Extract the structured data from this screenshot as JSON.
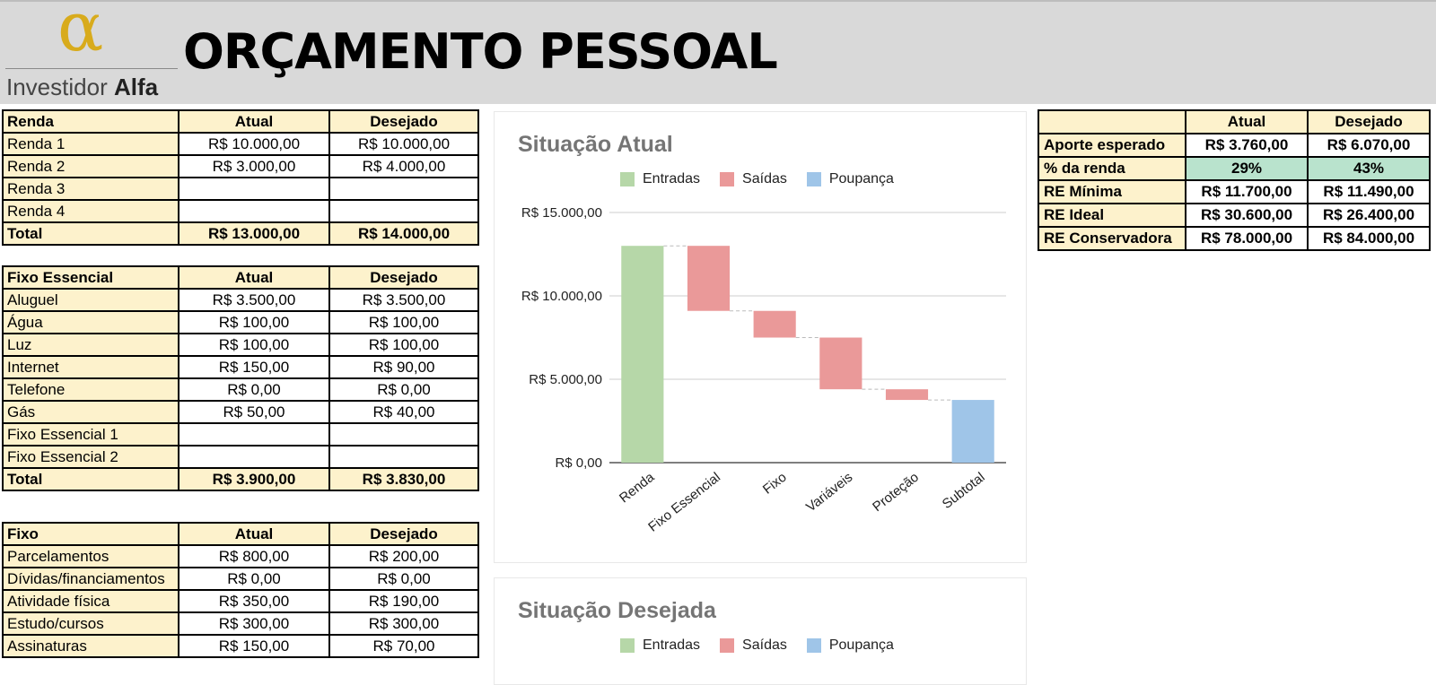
{
  "header": {
    "logo_alpha": "α",
    "logo_text_regular": "Investidor ",
    "logo_text_bold": "Alfa",
    "title": "ORÇAMENTO PESSOAL"
  },
  "colors": {
    "header_bg": "#d9d9d9",
    "label_bg": "#fdf2cc",
    "pct_bg": "#b9e3cd",
    "entradas": "#b6d7a8",
    "saidas": "#ea9999",
    "poupanca": "#9fc5e8",
    "logo_gold": "#d8ab1c"
  },
  "renda": {
    "header": [
      "Renda",
      "Atual",
      "Desejado"
    ],
    "rows": [
      [
        "Renda 1",
        "R$ 10.000,00",
        "R$ 10.000,00"
      ],
      [
        "Renda 2",
        "R$ 3.000,00",
        "R$ 4.000,00"
      ],
      [
        "Renda 3",
        "",
        ""
      ],
      [
        "Renda 4",
        "",
        ""
      ]
    ],
    "total": [
      "Total",
      "R$ 13.000,00",
      "R$ 14.000,00"
    ]
  },
  "fixo_essencial": {
    "header": [
      "Fixo Essencial",
      "Atual",
      "Desejado"
    ],
    "rows": [
      [
        "Aluguel",
        "R$ 3.500,00",
        "R$ 3.500,00"
      ],
      [
        "Água",
        "R$ 100,00",
        "R$ 100,00"
      ],
      [
        "Luz",
        "R$ 100,00",
        "R$ 100,00"
      ],
      [
        "Internet",
        "R$ 150,00",
        "R$ 90,00"
      ],
      [
        "Telefone",
        "R$ 0,00",
        "R$ 0,00"
      ],
      [
        "Gás",
        "R$ 50,00",
        "R$ 40,00"
      ],
      [
        "Fixo Essencial 1",
        "",
        ""
      ],
      [
        "Fixo Essencial 2",
        "",
        ""
      ]
    ],
    "total": [
      "Total",
      "R$ 3.900,00",
      "R$ 3.830,00"
    ]
  },
  "fixo": {
    "header": [
      "Fixo",
      "Atual",
      "Desejado"
    ],
    "rows": [
      [
        "Parcelamentos",
        "R$ 800,00",
        "R$ 200,00"
      ],
      [
        "Dívidas/financiamentos",
        "R$ 0,00",
        "R$ 0,00"
      ],
      [
        "Atividade física",
        "R$ 350,00",
        "R$ 190,00"
      ],
      [
        "Estudo/cursos",
        "R$ 300,00",
        "R$ 300,00"
      ],
      [
        "Assinaturas",
        "R$ 150,00",
        "R$ 70,00"
      ]
    ]
  },
  "summary": {
    "header": [
      "",
      "Atual",
      "Desejado"
    ],
    "rows": [
      [
        "Aporte esperado",
        "R$ 3.760,00",
        "R$ 6.070,00"
      ],
      [
        "% da renda",
        "29%",
        "43%"
      ],
      [
        "RE Mínima",
        "R$ 11.700,00",
        "R$ 11.490,00"
      ],
      [
        "RE Ideal",
        "R$ 30.600,00",
        "R$ 26.400,00"
      ],
      [
        "RE Conservadora",
        "R$ 78.000,00",
        "R$ 84.000,00"
      ]
    ]
  },
  "legend": [
    "Entradas",
    "Saídas",
    "Poupança"
  ],
  "chart_data": [
    {
      "type": "bar",
      "subtype": "waterfall",
      "title": "Situação Atual",
      "legend": [
        "Entradas",
        "Saídas",
        "Poupança"
      ],
      "legend_position": "top",
      "categories": [
        "Renda",
        "Fixo Essencial",
        "Fixo",
        "Variáveis",
        "Proteção",
        "Subtotal"
      ],
      "steps": [
        {
          "category": "Renda",
          "kind": "Entradas",
          "start": 0,
          "end": 13000
        },
        {
          "category": "Fixo Essencial",
          "kind": "Saídas",
          "start": 13000,
          "end": 9100
        },
        {
          "category": "Fixo",
          "kind": "Saídas",
          "start": 9100,
          "end": 7500
        },
        {
          "category": "Variáveis",
          "kind": "Saídas",
          "start": 7500,
          "end": 4400
        },
        {
          "category": "Proteção",
          "kind": "Saídas",
          "start": 4400,
          "end": 3760
        },
        {
          "category": "Subtotal",
          "kind": "Poupança",
          "start": 0,
          "end": 3760
        }
      ],
      "y_ticks": [
        "R$ 0,00",
        "R$ 5.000,00",
        "R$ 10.000,00",
        "R$ 15.000,00"
      ],
      "ylim": [
        0,
        15000
      ],
      "grid": true
    },
    {
      "type": "bar",
      "subtype": "waterfall",
      "title": "Situação Desejada",
      "legend": [
        "Entradas",
        "Saídas",
        "Poupança"
      ],
      "legend_position": "top"
    }
  ]
}
